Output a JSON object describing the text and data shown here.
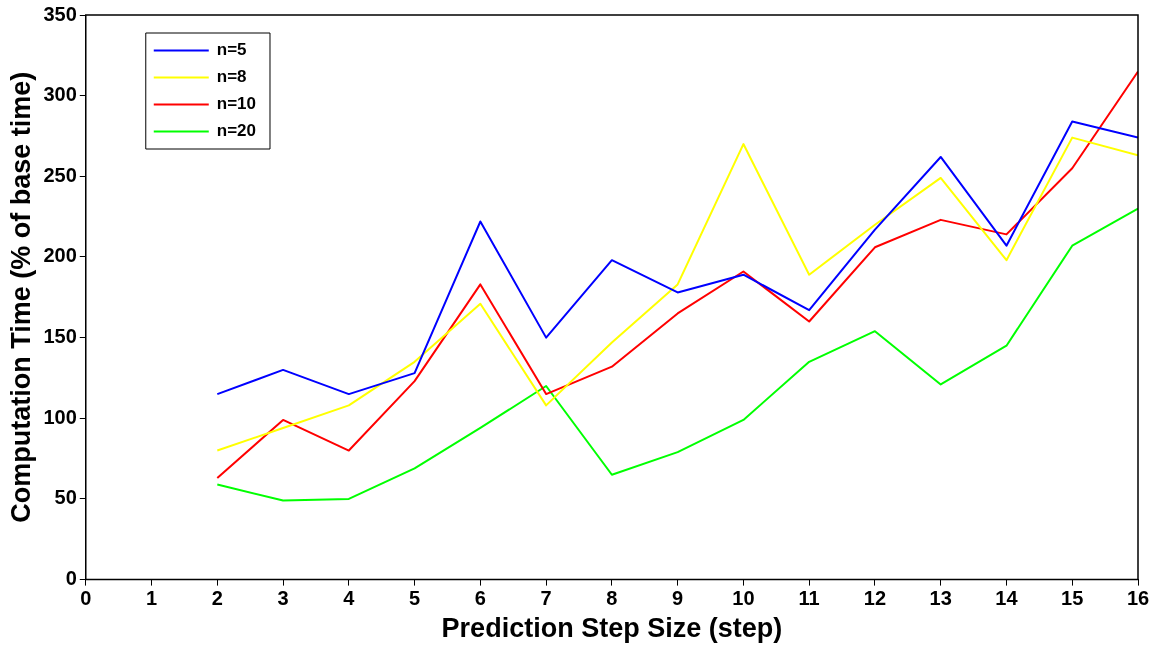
{
  "chart_data": {
    "type": "line",
    "xlabel": "Prediction Step Size (step)",
    "ylabel": "Computation Time (% of base time)",
    "x": [
      2,
      3,
      4,
      5,
      6,
      7,
      8,
      9,
      10,
      11,
      12,
      13,
      14,
      15,
      16
    ],
    "series": [
      {
        "name": "n=5",
        "color": "#0000ff",
        "values": [
          115,
          130,
          115,
          128,
          222,
          150,
          198,
          178,
          189,
          167,
          217,
          262,
          207,
          284,
          274
        ]
      },
      {
        "name": "n=8",
        "color": "#ffff00",
        "values": [
          80,
          94,
          108,
          135,
          171,
          108,
          147,
          183,
          270,
          189,
          220,
          249,
          198,
          274,
          263
        ]
      },
      {
        "name": "n=10",
        "color": "#ff0000",
        "values": [
          63,
          99,
          80,
          123,
          183,
          115,
          132,
          165,
          191,
          160,
          206,
          223,
          214,
          255,
          315
        ]
      },
      {
        "name": "n=20",
        "color": "#00ff00",
        "values": [
          59,
          49,
          50,
          69,
          94,
          120,
          65,
          79,
          99,
          135,
          154,
          121,
          145,
          207,
          230
        ]
      }
    ],
    "xlim": [
      0,
      16
    ],
    "xticks": [
      0,
      1,
      2,
      3,
      4,
      5,
      6,
      7,
      8,
      9,
      10,
      11,
      12,
      13,
      14,
      15,
      16
    ],
    "ylim": [
      0,
      350
    ],
    "yticks": [
      0,
      50,
      100,
      150,
      200,
      250,
      300,
      350
    ],
    "grid": false,
    "legend": "top left",
    "marker": "none",
    "line_style": "solid"
  }
}
